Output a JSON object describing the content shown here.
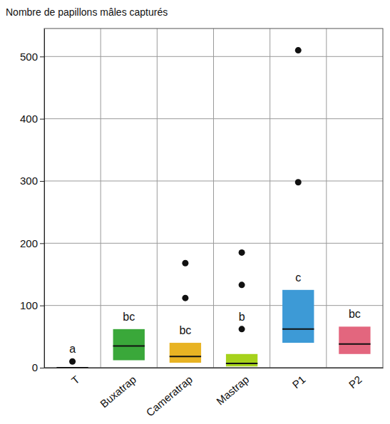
{
  "chart_data": {
    "type": "box",
    "y_label": "Nombre de papillons mâles capturés",
    "categories": [
      "T",
      "Buxatrap",
      "Cameratrap",
      "Mastrap",
      "P1",
      "P2"
    ],
    "q1": [
      0,
      12,
      8,
      2,
      40,
      22
    ],
    "median": [
      0,
      35,
      18,
      7,
      62,
      38
    ],
    "q3": [
      0,
      62,
      40,
      22,
      125,
      66
    ],
    "outliers": [
      [
        10
      ],
      [],
      [
        112,
        168
      ],
      [
        62,
        133,
        185
      ],
      [
        298,
        510
      ],
      []
    ],
    "letters": [
      "a",
      "bc",
      "bc",
      "b",
      "c",
      "bc"
    ],
    "colors": [
      "#8c8c8c",
      "#3aa83a",
      "#e8b323",
      "#a6d21c",
      "#3d9ad6",
      "#e3667e"
    ],
    "ylim": [
      0,
      545
    ],
    "yticks": [
      0,
      100,
      200,
      300,
      400,
      500
    ],
    "grid": true
  }
}
